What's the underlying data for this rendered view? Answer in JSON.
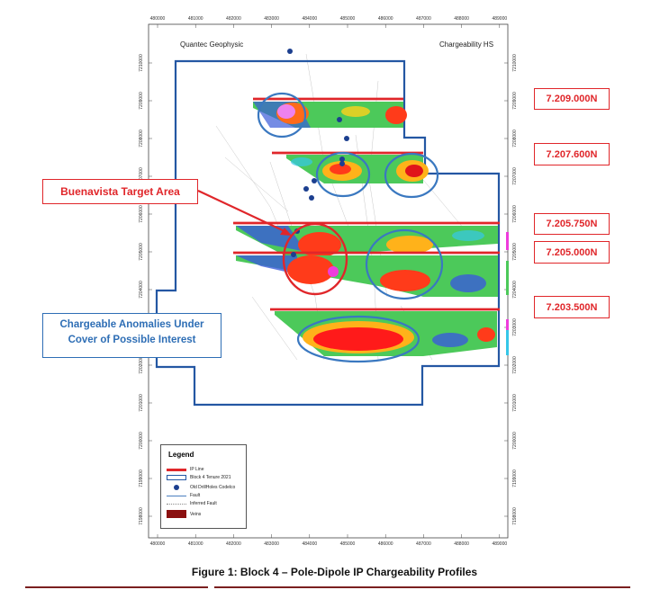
{
  "map": {
    "title_left": "Quantec Geophysic",
    "title_right": "Chargeability HS",
    "x_ticks": [
      "480000",
      "481000",
      "482000",
      "483000",
      "484000",
      "485000",
      "486000",
      "487000",
      "488000",
      "489000"
    ],
    "y_ticks": [
      "7210000",
      "7209000",
      "7208000",
      "7207000",
      "7206000",
      "7205000",
      "7204000",
      "7203000",
      "7202000",
      "7201000",
      "7200000",
      "7199000",
      "7198000"
    ],
    "colors": {
      "ip_line": "#e0262a",
      "tenure": "#2457a3",
      "anomaly_circle": "#3a78c0",
      "target_circle": "#e0262a",
      "drillhole": "#1c3f8f",
      "vein": "#8b1010"
    }
  },
  "line_labels": [
    "7.209.000N",
    "7.207.600N",
    "7.205.750N",
    "7.205.000N",
    "7.203.500N"
  ],
  "callouts": {
    "target": "Buenavista Target Area",
    "anomalies_line1": "Chargeable Anomalies Under",
    "anomalies_line2": "Cover of Possible Interest"
  },
  "legend": {
    "title": "Legend",
    "items": [
      {
        "label": "IP Line",
        "symbol": "red-line"
      },
      {
        "label": "Block 4 Tenure 2021",
        "symbol": "blue-box"
      },
      {
        "label": "Old DrillHoles Codelco",
        "symbol": "blue-dot"
      },
      {
        "label": "Fault",
        "symbol": "solid-line"
      },
      {
        "label": "Inferred Fault",
        "symbol": "dotted-line"
      },
      {
        "label": "Veins",
        "symbol": "red-fill"
      }
    ]
  },
  "caption": "Figure 1: Block 4 – Pole-Dipole IP Chargeability Profiles"
}
